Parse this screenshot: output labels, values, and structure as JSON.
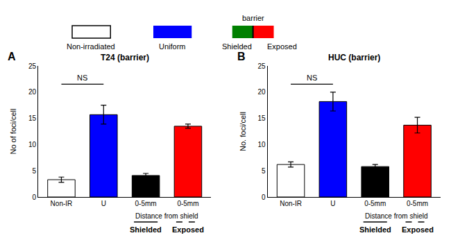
{
  "chart_data": [
    {
      "type": "legend",
      "series": [
        {
          "name": "Non-irradiated",
          "color": "white"
        },
        {
          "name": "Uniform",
          "color": "blue"
        },
        {
          "name": "Shielded",
          "color": "green"
        },
        {
          "name": "Exposed",
          "color": "red"
        }
      ],
      "annotations": [
        {
          "text": "barrier",
          "x": [
            2,
            3
          ]
        }
      ]
    },
    {
      "type": "bar",
      "title": "T24 (barrier)",
      "ylabel": "No of foci/cell",
      "categories": [
        "Non-IR",
        "U",
        "0-5mm",
        "0-5mm"
      ],
      "values": [
        3.3,
        15.7,
        4.1,
        13.5
      ],
      "errors": [
        0.5,
        1.8,
        0.4,
        0.4
      ],
      "colors": [
        "white",
        "blue",
        "black",
        "red"
      ],
      "ylim": [
        0,
        25
      ],
      "yticks": [
        0,
        5,
        10,
        15,
        20,
        25
      ],
      "grid": false,
      "annotations": [
        {
          "text": "A"
        },
        {
          "text": "NS",
          "x": [
            0,
            1
          ],
          "y": 21.5
        },
        {
          "text": "Distance from shield",
          "x": [
            2,
            3
          ]
        },
        {
          "text": "Shielded",
          "x": 2,
          "line_style": "solid"
        },
        {
          "text": "Exposed",
          "x": 3,
          "line_style": "dashed"
        }
      ]
    },
    {
      "type": "bar",
      "title": "HUC (barrier)",
      "ylabel": "No. foci/cell",
      "categories": [
        "Non-IR",
        "U",
        "0-5mm",
        "0-5mm"
      ],
      "values": [
        6.2,
        18.2,
        5.8,
        13.7
      ],
      "errors": [
        0.5,
        1.8,
        0.4,
        1.5
      ],
      "colors": [
        "white",
        "blue",
        "black",
        "red"
      ],
      "ylim": [
        0,
        25
      ],
      "yticks": [
        0,
        5,
        10,
        15,
        20,
        25
      ],
      "grid": false,
      "annotations": [
        {
          "text": "B"
        },
        {
          "text": "NS",
          "x": [
            0,
            1
          ],
          "y": 21.5
        },
        {
          "text": "Distance from shield",
          "x": [
            2,
            3
          ]
        },
        {
          "text": "Shielded",
          "x": 2,
          "line_style": "solid"
        },
        {
          "text": "Exposed",
          "x": 3,
          "line_style": "dashed"
        }
      ]
    }
  ]
}
